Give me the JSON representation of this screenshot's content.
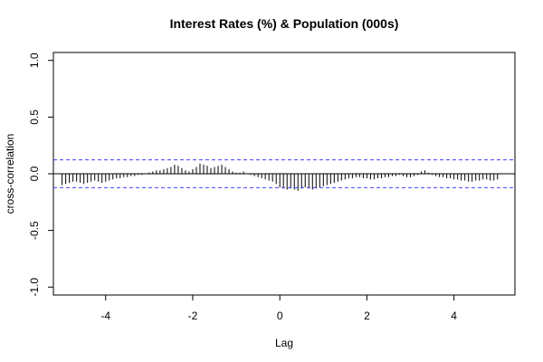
{
  "chart_data": {
    "type": "bar",
    "title": "Interest Rates (%) & Population (000s)",
    "xlabel": "Lag",
    "ylabel": "cross-correlation",
    "xlim": [
      -5.2,
      5.4
    ],
    "ylim": [
      -1.07,
      1.07
    ],
    "xticks": [
      -4,
      -2,
      0,
      2,
      4
    ],
    "yticks": [
      -1.0,
      -0.5,
      0.0,
      0.5,
      1.0
    ],
    "xtick_labels": [
      "-4",
      "-2",
      "0",
      "2",
      "4"
    ],
    "ytick_labels": [
      "-1.0",
      "-0.5",
      "0.0",
      "0.5",
      "1.0"
    ],
    "confidence_bounds": [
      0.123,
      -0.123
    ],
    "colors": {
      "bars": "#000000",
      "confidence_line": "#4040ff",
      "axes": "#000000",
      "zero_line": "#000000"
    },
    "lag_start": -5.0,
    "lag_end": 5.0,
    "lag_step": 0.083333,
    "values": [
      -0.1,
      -0.09,
      -0.08,
      -0.07,
      -0.07,
      -0.08,
      -0.09,
      -0.08,
      -0.07,
      -0.06,
      -0.07,
      -0.08,
      -0.07,
      -0.06,
      -0.05,
      -0.04,
      -0.04,
      -0.03,
      -0.03,
      -0.02,
      -0.02,
      -0.01,
      -0.01,
      0.0,
      0.01,
      0.02,
      0.03,
      0.03,
      0.04,
      0.05,
      0.06,
      0.08,
      0.07,
      0.05,
      0.03,
      0.02,
      0.04,
      0.06,
      0.09,
      0.08,
      0.07,
      0.05,
      0.06,
      0.07,
      0.08,
      0.06,
      0.04,
      0.02,
      0.01,
      0.01,
      0.02,
      0.0,
      -0.01,
      -0.02,
      -0.03,
      -0.04,
      -0.05,
      -0.06,
      -0.07,
      -0.09,
      -0.12,
      -0.13,
      -0.14,
      -0.13,
      -0.14,
      -0.15,
      -0.13,
      -0.12,
      -0.13,
      -0.14,
      -0.13,
      -0.12,
      -0.11,
      -0.1,
      -0.09,
      -0.08,
      -0.07,
      -0.06,
      -0.05,
      -0.04,
      -0.04,
      -0.03,
      -0.03,
      -0.04,
      -0.04,
      -0.05,
      -0.05,
      -0.04,
      -0.04,
      -0.03,
      -0.03,
      -0.02,
      -0.02,
      -0.01,
      -0.02,
      -0.03,
      -0.03,
      -0.02,
      -0.01,
      0.02,
      0.03,
      0.01,
      -0.01,
      -0.02,
      -0.03,
      -0.03,
      -0.04,
      -0.04,
      -0.05,
      -0.05,
      -0.06,
      -0.06,
      -0.07,
      -0.07,
      -0.06,
      -0.06,
      -0.05,
      -0.05,
      -0.06,
      -0.06,
      -0.05
    ]
  }
}
